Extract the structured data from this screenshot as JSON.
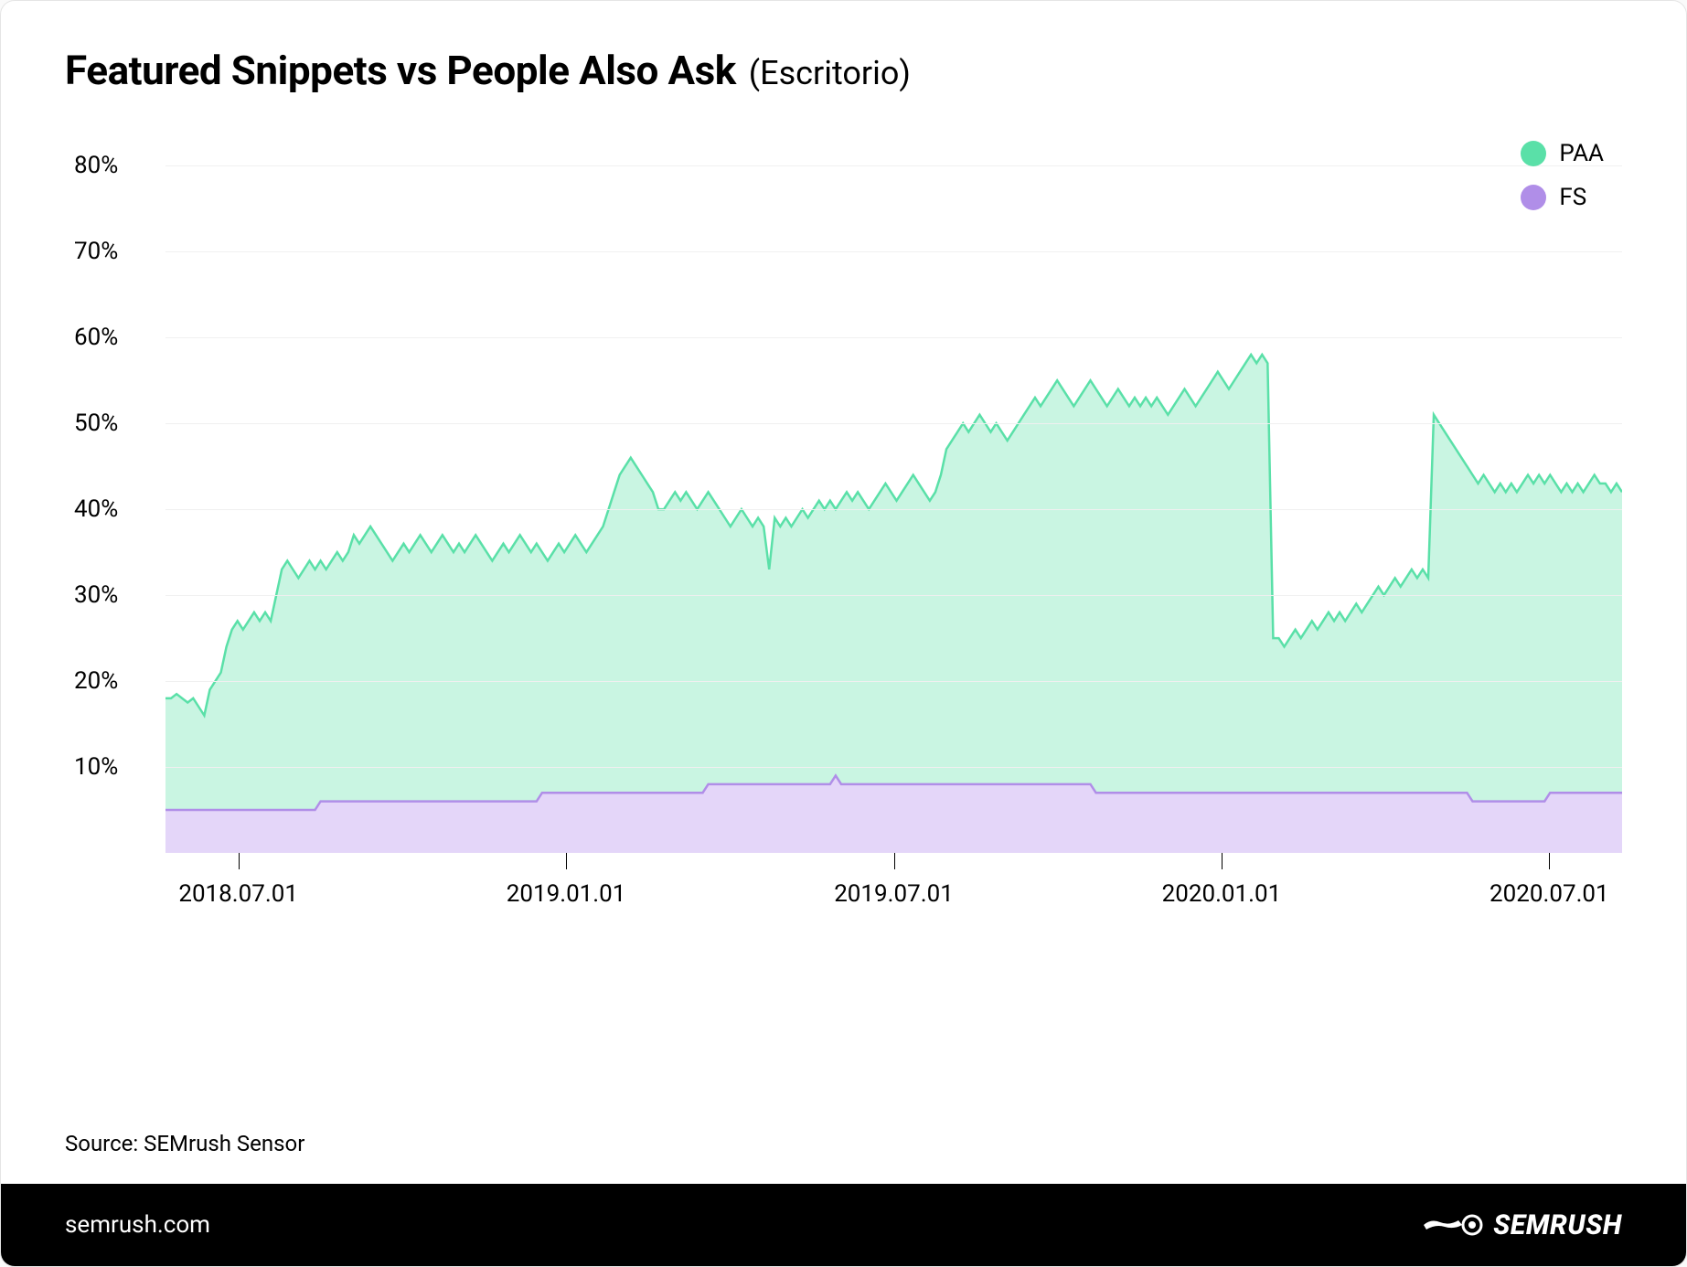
{
  "title": "Featured Snippets vs People Also Ask",
  "subtitle": "(Escritorio)",
  "source": "Source: SEMrush Sensor",
  "footer_domain": "semrush.com",
  "footer_brand": "SEMRUSH",
  "chart": {
    "type": "area",
    "background_color": "#ffffff",
    "grid_color": "#f0f0f0",
    "text_color": "#000000",
    "ylim": [
      0,
      83
    ],
    "ytick_step": 10,
    "y_ticks": [
      {
        "v": 10,
        "label": "10%"
      },
      {
        "v": 20,
        "label": "20%"
      },
      {
        "v": 30,
        "label": "30%"
      },
      {
        "v": 40,
        "label": "40%"
      },
      {
        "v": 50,
        "label": "50%"
      },
      {
        "v": 60,
        "label": "60%"
      },
      {
        "v": 70,
        "label": "70%"
      },
      {
        "v": 80,
        "label": "80%"
      }
    ],
    "label_fontsize": 26,
    "x_ticks": [
      {
        "pos": 0.05,
        "label": "2018.07.01"
      },
      {
        "pos": 0.275,
        "label": "2019.01.01"
      },
      {
        "pos": 0.5,
        "label": "2019.07.01"
      },
      {
        "pos": 0.725,
        "label": "2020.01.01"
      },
      {
        "pos": 0.95,
        "label": "2020.07.01"
      }
    ],
    "legend": [
      {
        "key": "paa",
        "label": "PAA",
        "color": "#5ae0a8"
      },
      {
        "key": "fs",
        "label": "FS",
        "color": "#b08ee8"
      }
    ],
    "series": {
      "paa": {
        "label": "PAA",
        "line_color": "#5ae0a8",
        "fill_color": "#c9f5e2",
        "line_width": 2.5,
        "fill_opacity": 1.0,
        "values": [
          18,
          18,
          18.5,
          18,
          17.5,
          18,
          17,
          16,
          19,
          20,
          21,
          24,
          26,
          27,
          26,
          27,
          28,
          27,
          28,
          27,
          30,
          33,
          34,
          33,
          32,
          33,
          34,
          33,
          34,
          33,
          34,
          35,
          34,
          35,
          37,
          36,
          37,
          38,
          37,
          36,
          35,
          34,
          35,
          36,
          35,
          36,
          37,
          36,
          35,
          36,
          37,
          36,
          35,
          36,
          35,
          36,
          37,
          36,
          35,
          34,
          35,
          36,
          35,
          36,
          37,
          36,
          35,
          36,
          35,
          34,
          35,
          36,
          35,
          36,
          37,
          36,
          35,
          36,
          37,
          38,
          40,
          42,
          44,
          45,
          46,
          45,
          44,
          43,
          42,
          40,
          40,
          41,
          42,
          41,
          42,
          41,
          40,
          41,
          42,
          41,
          40,
          39,
          38,
          39,
          40,
          39,
          38,
          39,
          38,
          33,
          39,
          38,
          39,
          38,
          39,
          40,
          39,
          40,
          41,
          40,
          41,
          40,
          41,
          42,
          41,
          42,
          41,
          40,
          41,
          42,
          43,
          42,
          41,
          42,
          43,
          44,
          43,
          42,
          41,
          42,
          44,
          47,
          48,
          49,
          50,
          49,
          50,
          51,
          50,
          49,
          50,
          49,
          48,
          49,
          50,
          51,
          52,
          53,
          52,
          53,
          54,
          55,
          54,
          53,
          52,
          53,
          54,
          55,
          54,
          53,
          52,
          53,
          54,
          53,
          52,
          53,
          52,
          53,
          52,
          53,
          52,
          51,
          52,
          53,
          54,
          53,
          52,
          53,
          54,
          55,
          56,
          55,
          54,
          55,
          56,
          57,
          58,
          57,
          58,
          57,
          25,
          25,
          24,
          25,
          26,
          25,
          26,
          27,
          26,
          27,
          28,
          27,
          28,
          27,
          28,
          29,
          28,
          29,
          30,
          31,
          30,
          31,
          32,
          31,
          32,
          33,
          32,
          33,
          32,
          51,
          50,
          49,
          48,
          47,
          46,
          45,
          44,
          43,
          44,
          43,
          42,
          43,
          42,
          43,
          42,
          43,
          44,
          43,
          44,
          43,
          44,
          43,
          42,
          43,
          42,
          43,
          42,
          43,
          44,
          43,
          43,
          42,
          43,
          42
        ]
      },
      "fs": {
        "label": "FS",
        "line_color": "#b08ee8",
        "fill_color": "#e4d6f9",
        "line_width": 2.5,
        "fill_opacity": 1.0,
        "values": [
          5,
          5,
          5,
          5,
          5,
          5,
          5,
          5,
          5,
          5,
          5,
          5,
          5,
          5,
          5,
          5,
          5,
          5,
          5,
          5,
          5,
          5,
          5,
          5,
          5,
          5,
          5,
          5,
          6,
          6,
          6,
          6,
          6,
          6,
          6,
          6,
          6,
          6,
          6,
          6,
          6,
          6,
          6,
          6,
          6,
          6,
          6,
          6,
          6,
          6,
          6,
          6,
          6,
          6,
          6,
          6,
          6,
          6,
          6,
          6,
          6,
          6,
          6,
          6,
          6,
          6,
          6,
          6,
          7,
          7,
          7,
          7,
          7,
          7,
          7,
          7,
          7,
          7,
          7,
          7,
          7,
          7,
          7,
          7,
          7,
          7,
          7,
          7,
          7,
          7,
          7,
          7,
          7,
          7,
          7,
          7,
          7,
          7,
          8,
          8,
          8,
          8,
          8,
          8,
          8,
          8,
          8,
          8,
          8,
          8,
          8,
          8,
          8,
          8,
          8,
          8,
          8,
          8,
          8,
          8,
          8,
          9,
          8,
          8,
          8,
          8,
          8,
          8,
          8,
          8,
          8,
          8,
          8,
          8,
          8,
          8,
          8,
          8,
          8,
          8,
          8,
          8,
          8,
          8,
          8,
          8,
          8,
          8,
          8,
          8,
          8,
          8,
          8,
          8,
          8,
          8,
          8,
          8,
          8,
          8,
          8,
          8,
          8,
          8,
          8,
          8,
          8,
          8,
          7,
          7,
          7,
          7,
          7,
          7,
          7,
          7,
          7,
          7,
          7,
          7,
          7,
          7,
          7,
          7,
          7,
          7,
          7,
          7,
          7,
          7,
          7,
          7,
          7,
          7,
          7,
          7,
          7,
          7,
          7,
          7,
          7,
          7,
          7,
          7,
          7,
          7,
          7,
          7,
          7,
          7,
          7,
          7,
          7,
          7,
          7,
          7,
          7,
          7,
          7,
          7,
          7,
          7,
          7,
          7,
          7,
          7,
          7,
          7,
          7,
          7,
          7,
          7,
          7,
          7,
          7,
          7,
          6,
          6,
          6,
          6,
          6,
          6,
          6,
          6,
          6,
          6,
          6,
          6,
          6,
          6,
          7,
          7,
          7,
          7,
          7,
          7,
          7,
          7,
          7,
          7,
          7,
          7,
          7,
          7
        ]
      }
    }
  }
}
